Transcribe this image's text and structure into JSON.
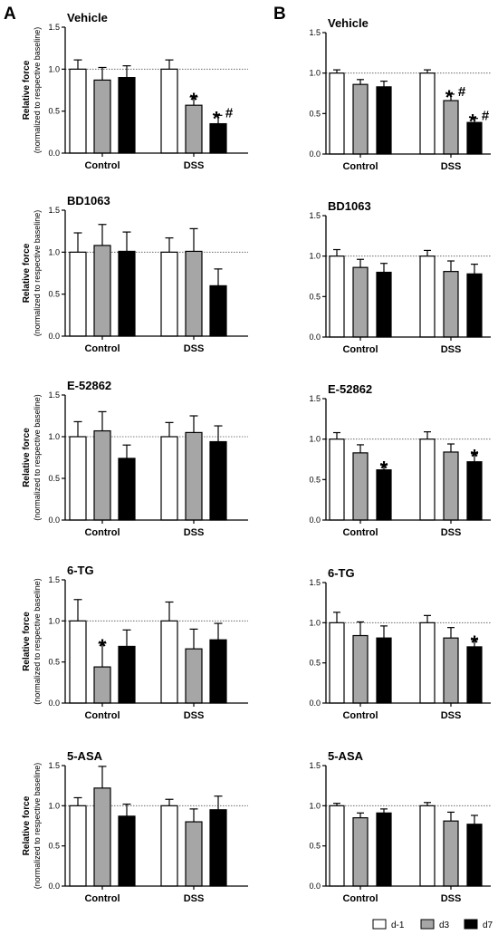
{
  "panel_labels": [
    "A",
    "B"
  ],
  "y_axis": {
    "label": "Relative force",
    "sublabel": "(normalized to respective baseline)",
    "ticks": [
      "0.0",
      "0.5",
      "1.0",
      "1.5"
    ]
  },
  "legend": [
    {
      "name": "d-1",
      "color": "#ffffff"
    },
    {
      "name": "d3",
      "color": "#a6a6a6"
    },
    {
      "name": "d7",
      "color": "#000000"
    }
  ],
  "chart_data": [
    {
      "panel": "A",
      "type": "bar",
      "title": "Vehicle",
      "categories": [
        "Control",
        "DSS"
      ],
      "ylim": [
        0,
        1.5
      ],
      "reference_line": 1.0,
      "series": [
        {
          "name": "d-1",
          "values": [
            1.0,
            1.0
          ],
          "errors": [
            0.11,
            0.11
          ]
        },
        {
          "name": "d3",
          "values": [
            0.87,
            0.57
          ],
          "errors": [
            0.15,
            0.1
          ]
        },
        {
          "name": "d7",
          "values": [
            0.9,
            0.35
          ],
          "errors": [
            0.14,
            0.1
          ]
        }
      ],
      "annotations": [
        {
          "series": "d3",
          "category": "DSS",
          "text": "*"
        },
        {
          "series": "d7",
          "category": "DSS",
          "text": "*#"
        }
      ]
    },
    {
      "panel": "A",
      "type": "bar",
      "title": "BD1063",
      "categories": [
        "Control",
        "DSS"
      ],
      "ylim": [
        0,
        1.5
      ],
      "reference_line": 1.0,
      "series": [
        {
          "name": "d-1",
          "values": [
            1.0,
            1.0
          ],
          "errors": [
            0.23,
            0.17
          ]
        },
        {
          "name": "d3",
          "values": [
            1.08,
            1.01
          ],
          "errors": [
            0.25,
            0.27
          ]
        },
        {
          "name": "d7",
          "values": [
            1.01,
            0.6
          ],
          "errors": [
            0.23,
            0.2
          ]
        }
      ],
      "annotations": []
    },
    {
      "panel": "A",
      "type": "bar",
      "title": "E-52862",
      "categories": [
        "Control",
        "DSS"
      ],
      "ylim": [
        0,
        1.5
      ],
      "reference_line": 1.0,
      "series": [
        {
          "name": "d-1",
          "values": [
            1.0,
            1.0
          ],
          "errors": [
            0.18,
            0.17
          ]
        },
        {
          "name": "d3",
          "values": [
            1.07,
            1.05
          ],
          "errors": [
            0.23,
            0.2
          ]
        },
        {
          "name": "d7",
          "values": [
            0.74,
            0.94
          ],
          "errors": [
            0.16,
            0.19
          ]
        }
      ],
      "annotations": []
    },
    {
      "panel": "A",
      "type": "bar",
      "title": "6-TG",
      "categories": [
        "Control",
        "DSS"
      ],
      "ylim": [
        0,
        1.5
      ],
      "reference_line": 1.0,
      "series": [
        {
          "name": "d-1",
          "values": [
            1.0,
            1.0
          ],
          "errors": [
            0.26,
            0.23
          ]
        },
        {
          "name": "d3",
          "values": [
            0.44,
            0.66
          ],
          "errors": [
            0.29,
            0.24
          ]
        },
        {
          "name": "d7",
          "values": [
            0.69,
            0.77
          ],
          "errors": [
            0.2,
            0.2
          ]
        }
      ],
      "annotations": [
        {
          "series": "d3",
          "category": "Control",
          "text": "*"
        }
      ]
    },
    {
      "panel": "A",
      "type": "bar",
      "title": "5-ASA",
      "categories": [
        "Control",
        "DSS"
      ],
      "ylim": [
        0,
        1.5
      ],
      "reference_line": 1.0,
      "series": [
        {
          "name": "d-1",
          "values": [
            1.0,
            1.0
          ],
          "errors": [
            0.1,
            0.08
          ]
        },
        {
          "name": "d3",
          "values": [
            1.22,
            0.8
          ],
          "errors": [
            0.27,
            0.16
          ]
        },
        {
          "name": "d7",
          "values": [
            0.87,
            0.95
          ],
          "errors": [
            0.15,
            0.17
          ]
        }
      ],
      "annotations": []
    },
    {
      "panel": "B",
      "type": "bar",
      "title": "Vehicle",
      "categories": [
        "Control",
        "DSS"
      ],
      "ylim": [
        0,
        1.5
      ],
      "reference_line": 1.0,
      "series": [
        {
          "name": "d-1",
          "values": [
            1.0,
            1.0
          ],
          "errors": [
            0.04,
            0.04
          ]
        },
        {
          "name": "d3",
          "values": [
            0.86,
            0.66
          ],
          "errors": [
            0.06,
            0.08
          ]
        },
        {
          "name": "d7",
          "values": [
            0.83,
            0.39
          ],
          "errors": [
            0.07,
            0.05
          ]
        }
      ],
      "annotations": [
        {
          "series": "d3",
          "category": "DSS",
          "text": "*#"
        },
        {
          "series": "d7",
          "category": "DSS",
          "text": "*#"
        }
      ]
    },
    {
      "panel": "B",
      "type": "bar",
      "title": "BD1063",
      "categories": [
        "Control",
        "DSS"
      ],
      "ylim": [
        0,
        1.5
      ],
      "reference_line": 1.0,
      "series": [
        {
          "name": "d-1",
          "values": [
            1.0,
            1.0
          ],
          "errors": [
            0.08,
            0.07
          ]
        },
        {
          "name": "d3",
          "values": [
            0.86,
            0.81
          ],
          "errors": [
            0.1,
            0.13
          ]
        },
        {
          "name": "d7",
          "values": [
            0.8,
            0.78
          ],
          "errors": [
            0.11,
            0.12
          ]
        }
      ],
      "annotations": []
    },
    {
      "panel": "B",
      "type": "bar",
      "title": "E-52862",
      "categories": [
        "Control",
        "DSS"
      ],
      "ylim": [
        0,
        1.5
      ],
      "reference_line": 1.0,
      "series": [
        {
          "name": "d-1",
          "values": [
            1.0,
            1.0
          ],
          "errors": [
            0.08,
            0.09
          ]
        },
        {
          "name": "d3",
          "values": [
            0.83,
            0.84
          ],
          "errors": [
            0.1,
            0.1
          ]
        },
        {
          "name": "d7",
          "values": [
            0.62,
            0.72
          ],
          "errors": [
            0.06,
            0.1
          ]
        }
      ],
      "annotations": [
        {
          "series": "d7",
          "category": "Control",
          "text": "*"
        },
        {
          "series": "d7",
          "category": "DSS",
          "text": "*"
        }
      ]
    },
    {
      "panel": "B",
      "type": "bar",
      "title": "6-TG",
      "categories": [
        "Control",
        "DSS"
      ],
      "ylim": [
        0,
        1.5
      ],
      "reference_line": 1.0,
      "series": [
        {
          "name": "d-1",
          "values": [
            1.0,
            1.0
          ],
          "errors": [
            0.13,
            0.09
          ]
        },
        {
          "name": "d3",
          "values": [
            0.84,
            0.81
          ],
          "errors": [
            0.17,
            0.13
          ]
        },
        {
          "name": "d7",
          "values": [
            0.81,
            0.7
          ],
          "errors": [
            0.15,
            0.09
          ]
        }
      ],
      "annotations": [
        {
          "series": "d7",
          "category": "DSS",
          "text": "*"
        }
      ]
    },
    {
      "panel": "B",
      "type": "bar",
      "title": "5-ASA",
      "categories": [
        "Control",
        "DSS"
      ],
      "ylim": [
        0,
        1.5
      ],
      "reference_line": 1.0,
      "series": [
        {
          "name": "d-1",
          "values": [
            1.0,
            1.0
          ],
          "errors": [
            0.03,
            0.04
          ]
        },
        {
          "name": "d3",
          "values": [
            0.85,
            0.81
          ],
          "errors": [
            0.06,
            0.11
          ]
        },
        {
          "name": "d7",
          "values": [
            0.91,
            0.77
          ],
          "errors": [
            0.05,
            0.11
          ]
        }
      ],
      "annotations": []
    }
  ]
}
